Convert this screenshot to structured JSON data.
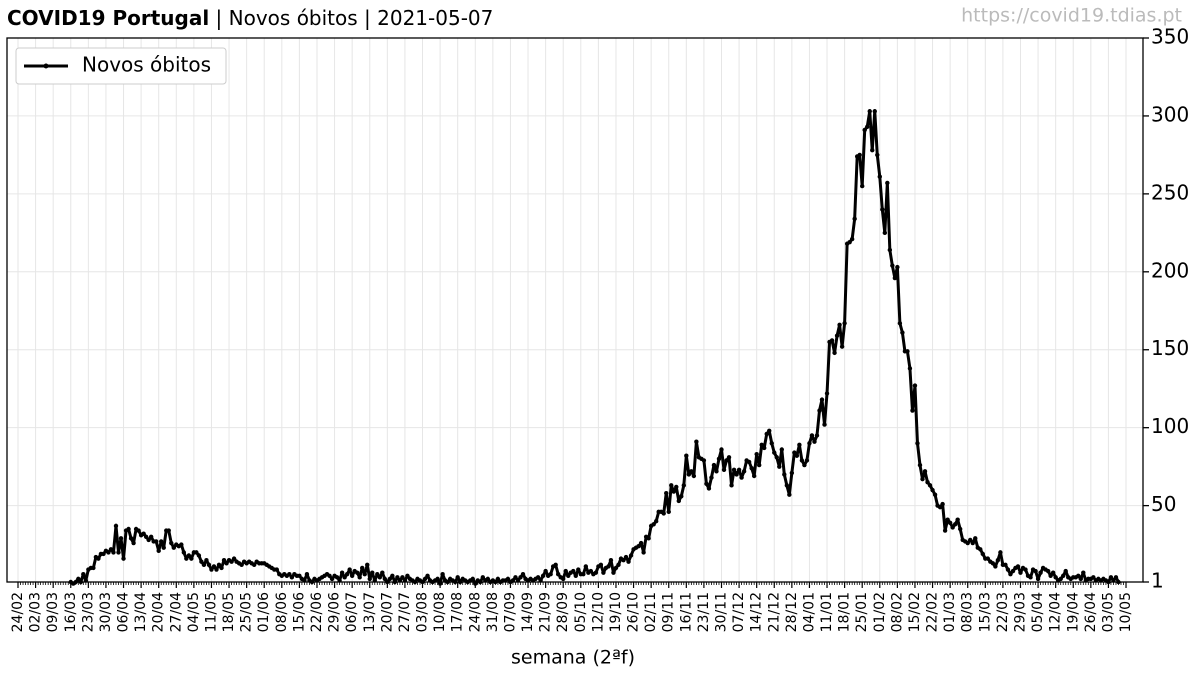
{
  "chart_data": {
    "type": "line",
    "title": "COVID19 Portugal",
    "subtitle": " | Novos óbitos | 2021-05-07",
    "source": "https://covid19.tdias.pt",
    "xlabel": "semana (2ªf)",
    "legend": "upper left",
    "grid": true,
    "ylim": [
      1,
      350
    ],
    "yticks": [
      1,
      50,
      100,
      150,
      200,
      250,
      300,
      350
    ],
    "xticks": [
      "24/02",
      "02/03",
      "09/03",
      "16/03",
      "23/03",
      "30/03",
      "06/04",
      "13/04",
      "20/04",
      "27/04",
      "04/05",
      "11/05",
      "18/05",
      "25/05",
      "01/06",
      "08/06",
      "15/06",
      "22/06",
      "29/06",
      "06/07",
      "13/07",
      "20/07",
      "27/07",
      "03/08",
      "10/08",
      "17/08",
      "24/08",
      "31/08",
      "07/09",
      "14/09",
      "21/09",
      "28/09",
      "05/10",
      "12/10",
      "19/10",
      "26/10",
      "02/11",
      "09/11",
      "16/11",
      "23/11",
      "30/11",
      "07/12",
      "14/12",
      "21/12",
      "28/12",
      "04/01",
      "11/01",
      "18/01",
      "25/01",
      "01/02",
      "08/02",
      "15/02",
      "22/02",
      "01/03",
      "08/03",
      "15/03",
      "22/03",
      "29/03",
      "05/04",
      "12/04",
      "19/04",
      "26/04",
      "03/05",
      "10/05"
    ],
    "x": [
      "24/02",
      "25/02",
      "26/02",
      "27/02",
      "28/02",
      "29/02",
      "01/03",
      "02/03",
      "03/03",
      "04/03",
      "05/03",
      "06/03",
      "07/03",
      "08/03",
      "09/03",
      "10/03",
      "11/03",
      "12/03",
      "13/03",
      "14/03",
      "15/03",
      "16/03",
      "17/03",
      "18/03",
      "19/03",
      "20/03",
      "21/03",
      "22/03",
      "23/03",
      "24/03",
      "25/03",
      "26/03",
      "27/03",
      "28/03",
      "29/03",
      "30/03",
      "31/03",
      "01/04",
      "02/04",
      "03/04",
      "04/04",
      "05/04",
      "06/04",
      "07/04",
      "08/04",
      "09/04",
      "10/04",
      "11/04",
      "12/04",
      "13/04",
      "14/04",
      "15/04",
      "16/04",
      "17/04",
      "18/04",
      "19/04",
      "20/04",
      "21/04",
      "22/04",
      "23/04",
      "24/04",
      "25/04",
      "26/04",
      "27/04",
      "28/04",
      "29/04",
      "30/04",
      "01/05",
      "02/05",
      "03/05",
      "04/05",
      "05/05",
      "06/05",
      "07/05",
      "08/05",
      "09/05",
      "10/05",
      "11/05",
      "12/05",
      "13/05",
      "14/05",
      "15/05",
      "16/05",
      "17/05",
      "18/05",
      "19/05",
      "20/05",
      "21/05",
      "22/05",
      "23/05",
      "24/05",
      "25/05",
      "26/05",
      "27/05",
      "28/05",
      "29/05",
      "30/05",
      "31/05",
      "01/06",
      "02/06",
      "03/06",
      "04/06",
      "05/06",
      "06/06",
      "07/06",
      "08/06",
      "09/06",
      "10/06",
      "11/06",
      "12/06",
      "13/06",
      "14/06",
      "15/06",
      "16/06",
      "17/06",
      "18/06",
      "19/06",
      "20/06",
      "21/06",
      "22/06",
      "23/06",
      "24/06",
      "25/06",
      "26/06",
      "27/06",
      "28/06",
      "29/06",
      "30/06",
      "01/07",
      "02/07",
      "03/07",
      "04/07",
      "05/07",
      "06/07",
      "07/07",
      "08/07",
      "09/07",
      "10/07",
      "11/07",
      "12/07",
      "13/07",
      "14/07",
      "15/07",
      "16/07",
      "17/07",
      "18/07",
      "19/07",
      "20/07",
      "21/07",
      "22/07",
      "23/07",
      "24/07",
      "25/07",
      "26/07",
      "27/07",
      "28/07",
      "29/07",
      "30/07",
      "31/07",
      "01/08",
      "02/08",
      "03/08",
      "04/08",
      "05/08",
      "06/08",
      "07/08",
      "08/08",
      "09/08",
      "10/08",
      "11/08",
      "12/08",
      "13/08",
      "14/08",
      "15/08",
      "16/08",
      "17/08",
      "18/08",
      "19/08",
      "20/08",
      "21/08",
      "22/08",
      "23/08",
      "24/08",
      "25/08",
      "26/08",
      "27/08",
      "28/08",
      "29/08",
      "30/08",
      "31/08",
      "01/09",
      "02/09",
      "03/09",
      "04/09",
      "05/09",
      "06/09",
      "07/09",
      "08/09",
      "09/09",
      "10/09",
      "11/09",
      "12/09",
      "13/09",
      "14/09",
      "15/09",
      "16/09",
      "17/09",
      "18/09",
      "19/09",
      "20/09",
      "21/09",
      "22/09",
      "23/09",
      "24/09",
      "25/09",
      "26/09",
      "27/09",
      "28/09",
      "29/09",
      "30/09",
      "01/10",
      "02/10",
      "03/10",
      "04/10",
      "05/10",
      "06/10",
      "07/10",
      "08/10",
      "09/10",
      "10/10",
      "11/10",
      "12/10",
      "13/10",
      "14/10",
      "15/10",
      "16/10",
      "17/10",
      "18/10",
      "19/10",
      "20/10",
      "21/10",
      "22/10",
      "23/10",
      "24/10",
      "25/10",
      "26/10",
      "27/10",
      "28/10",
      "29/10",
      "30/10",
      "31/10",
      "01/11",
      "02/11",
      "03/11",
      "04/11",
      "05/11",
      "06/11",
      "07/11",
      "08/11",
      "09/11",
      "10/11",
      "11/11",
      "12/11",
      "13/11",
      "14/11",
      "15/11",
      "16/11",
      "17/11",
      "18/11",
      "19/11",
      "20/11",
      "21/11",
      "22/11",
      "23/11",
      "24/11",
      "25/11",
      "26/11",
      "27/11",
      "28/11",
      "29/11",
      "30/11",
      "01/12",
      "02/12",
      "03/12",
      "04/12",
      "05/12",
      "06/12",
      "07/12",
      "08/12",
      "09/12",
      "10/12",
      "11/12",
      "12/12",
      "13/12",
      "14/12",
      "15/12",
      "16/12",
      "17/12",
      "18/12",
      "19/12",
      "20/12",
      "21/12",
      "22/12",
      "23/12",
      "24/12",
      "25/12",
      "26/12",
      "27/12",
      "28/12",
      "29/12",
      "30/12",
      "31/12",
      "01/01",
      "02/01",
      "03/01",
      "04/01",
      "05/01",
      "06/01",
      "07/01",
      "08/01",
      "09/01",
      "10/01",
      "11/01",
      "12/01",
      "13/01",
      "14/01",
      "15/01",
      "16/01",
      "17/01",
      "18/01",
      "19/01",
      "20/01",
      "21/01",
      "22/01",
      "23/01",
      "24/01",
      "25/01",
      "26/01",
      "27/01",
      "28/01",
      "29/01",
      "30/01",
      "31/01",
      "01/02",
      "02/02",
      "03/02",
      "04/02",
      "05/02",
      "06/02",
      "07/02",
      "08/02",
      "09/02",
      "10/02",
      "11/02",
      "12/02",
      "13/02",
      "14/02",
      "15/02",
      "16/02",
      "17/02",
      "18/02",
      "19/02",
      "20/02",
      "21/02",
      "22/02",
      "23/02",
      "24/02",
      "25/02",
      "26/02",
      "27/02",
      "28/02",
      "01/03",
      "02/03",
      "03/03",
      "04/03",
      "05/03",
      "06/03",
      "07/03",
      "08/03",
      "09/03",
      "10/03",
      "11/03",
      "12/03",
      "13/03",
      "14/03",
      "15/03",
      "16/03",
      "17/03",
      "18/03",
      "19/03",
      "20/03",
      "21/03",
      "22/03",
      "23/03",
      "24/03",
      "25/03",
      "26/03",
      "27/03",
      "28/03",
      "29/03",
      "30/03",
      "31/03",
      "01/04",
      "02/04",
      "03/04",
      "04/04",
      "05/04",
      "06/04",
      "07/04",
      "08/04",
      "09/04",
      "10/04",
      "11/04",
      "12/04",
      "13/04",
      "14/04",
      "15/04",
      "16/04",
      "17/04",
      "18/04",
      "19/04",
      "20/04",
      "21/04",
      "22/04",
      "23/04",
      "24/04",
      "25/04",
      "26/04",
      "27/04",
      "28/04",
      "29/04",
      "30/04",
      "01/05",
      "02/05",
      "03/05",
      "04/05",
      "05/05",
      "06/05",
      "07/05",
      "08/05",
      "09/05",
      "10/05"
    ],
    "series": [
      {
        "name": "Novos óbitos",
        "color": "#000000",
        "values": [
          null,
          null,
          null,
          null,
          null,
          null,
          null,
          null,
          null,
          null,
          null,
          null,
          null,
          null,
          null,
          null,
          null,
          null,
          null,
          null,
          null,
          1,
          0,
          1,
          3,
          1,
          6,
          2,
          9,
          10,
          10,
          17,
          16,
          19,
          19,
          21,
          20,
          22,
          20,
          37,
          20,
          29,
          16,
          34,
          35,
          29,
          26,
          35,
          34,
          31,
          32,
          30,
          28,
          30,
          27,
          27,
          21,
          27,
          23,
          34,
          34,
          26,
          23,
          25,
          24,
          25,
          20,
          16,
          18,
          16,
          20,
          20,
          18,
          14,
          12,
          15,
          12,
          9,
          11,
          9,
          12,
          10,
          15,
          13,
          15,
          14,
          16,
          14,
          13,
          12,
          14,
          13,
          14,
          13,
          12,
          14,
          13,
          13,
          13,
          12,
          11,
          10,
          9,
          9,
          6,
          5,
          6,
          5,
          6,
          4,
          6,
          5,
          5,
          3,
          2,
          6,
          2,
          1,
          3,
          2,
          3,
          4,
          5,
          6,
          5,
          3,
          5,
          4,
          2,
          7,
          4,
          6,
          9,
          5,
          8,
          7,
          4,
          10,
          6,
          12,
          3,
          7,
          2,
          6,
          4,
          7,
          3,
          1,
          3,
          5,
          1,
          4,
          2,
          4,
          2,
          5,
          3,
          2,
          1,
          3,
          2,
          1,
          3,
          5,
          2,
          1,
          2,
          3,
          0,
          6,
          2,
          1,
          3,
          2,
          1,
          4,
          1,
          3,
          2,
          1,
          2,
          3,
          0,
          2,
          1,
          4,
          2,
          3,
          1,
          2,
          1,
          3,
          1,
          2,
          2,
          3,
          1,
          2,
          4,
          2,
          4,
          6,
          3,
          2,
          3,
          2,
          3,
          4,
          2,
          5,
          8,
          5,
          6,
          11,
          12,
          6,
          4,
          3,
          8,
          5,
          7,
          8,
          5,
          9,
          6,
          6,
          11,
          7,
          8,
          6,
          7,
          11,
          12,
          7,
          10,
          11,
          15,
          7,
          10,
          12,
          16,
          15,
          17,
          14,
          18,
          22,
          23,
          24,
          26,
          20,
          30,
          29,
          37,
          38,
          40,
          46,
          46,
          45,
          58,
          46,
          63,
          59,
          62,
          53,
          56,
          63,
          82,
          70,
          72,
          69,
          91,
          81,
          80,
          79,
          64,
          61,
          68,
          76,
          72,
          80,
          86,
          73,
          79,
          81,
          63,
          73,
          70,
          73,
          68,
          72,
          79,
          78,
          74,
          69,
          83,
          76,
          89,
          87,
          96,
          98,
          90,
          84,
          81,
          75,
          86,
          70,
          63,
          57,
          71,
          84,
          82,
          89,
          79,
          76,
          79,
          90,
          95,
          91,
          95,
          111,
          118,
          102,
          122,
          155,
          156,
          148,
          159,
          166,
          152,
          167,
          218,
          219,
          221,
          234,
          274,
          275,
          255,
          291,
          293,
          303,
          278,
          303,
          275,
          261,
          240,
          225,
          257,
          214,
          204,
          196,
          203,
          167,
          161,
          149,
          149,
          138,
          111,
          127,
          90,
          76,
          67,
          72,
          65,
          63,
          60,
          57,
          50,
          49,
          51,
          34,
          41,
          39,
          36,
          38,
          41,
          35,
          28,
          27,
          26,
          28,
          26,
          29,
          23,
          22,
          19,
          16,
          16,
          14,
          13,
          11,
          15,
          20,
          12,
          12,
          9,
          6,
          8,
          10,
          11,
          7,
          10,
          9,
          5,
          4,
          9,
          8,
          3,
          7,
          10,
          9,
          8,
          5,
          7,
          4,
          2,
          3,
          5,
          8,
          4,
          3,
          4,
          4,
          5,
          3,
          7,
          2,
          3,
          3,
          4,
          2,
          3,
          2,
          3,
          2,
          1,
          4,
          2,
          4,
          1,
          null,
          null,
          null
        ]
      }
    ]
  }
}
